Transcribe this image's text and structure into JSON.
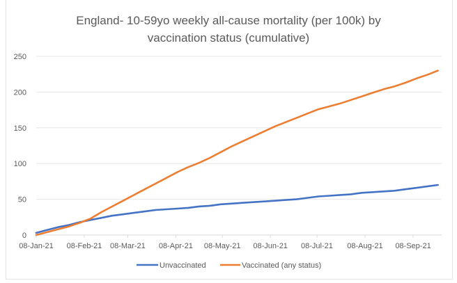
{
  "chart_data": {
    "type": "line",
    "title": [
      "England- 10-59yo weekly all-cause mortality (per 100k) by",
      "vaccination status (cumulative)"
    ],
    "xlabel": "",
    "ylabel": "",
    "ylim": [
      0,
      250
    ],
    "yticks": [
      "0",
      "50",
      "100",
      "150",
      "200",
      "250"
    ],
    "xticks": [
      {
        "label": "08-Jan-21",
        "day": 0
      },
      {
        "label": "08-Feb-21",
        "day": 31
      },
      {
        "label": "08-Mar-21",
        "day": 59
      },
      {
        "label": "08-Apr-21",
        "day": 90
      },
      {
        "label": "08-May-21",
        "day": 120
      },
      {
        "label": "08-Jun-21",
        "day": 151
      },
      {
        "label": "08-Jul-21",
        "day": 181
      },
      {
        "label": "08-Aug-21",
        "day": 212
      },
      {
        "label": "08-Sep-21",
        "day": 243
      }
    ],
    "x_start": "08-Jan-21",
    "x_step_days": 7,
    "grid": true,
    "legend_position": "bottom",
    "series": [
      {
        "name": "Unvaccinated",
        "color": "#4472C4",
        "values": [
          3,
          7,
          11,
          14,
          18,
          21,
          24,
          27,
          29,
          31,
          33,
          35,
          36,
          37,
          38,
          40,
          41,
          43,
          44,
          45,
          46,
          47,
          48,
          49,
          50,
          52,
          54,
          55,
          56,
          57,
          59,
          60,
          61,
          62,
          64,
          66,
          68,
          70
        ]
      },
      {
        "name": "Vaccinated (any status)",
        "color": "#ED7D31",
        "values": [
          0,
          4,
          8,
          12,
          17,
          23,
          32,
          40,
          48,
          56,
          64,
          72,
          80,
          88,
          95,
          101,
          108,
          116,
          124,
          131,
          138,
          145,
          152,
          158,
          164,
          170,
          176,
          180,
          184,
          189,
          194,
          199,
          204,
          208,
          213,
          219,
          224,
          230
        ]
      }
    ]
  }
}
